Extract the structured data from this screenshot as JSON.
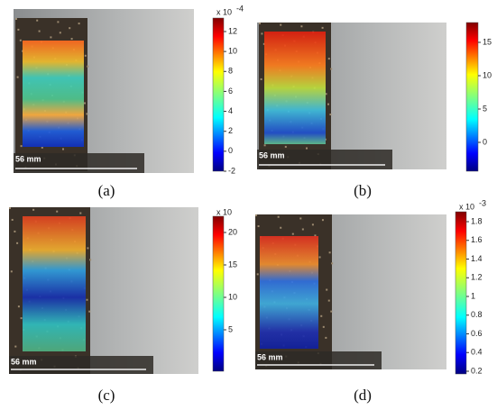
{
  "panels": [
    {
      "label": "(a)",
      "scale_text": "56 mm",
      "colorbar": {
        "multiplier": "x 10",
        "exponent": "-4",
        "ticks": [
          12,
          10,
          8,
          6,
          4,
          2,
          0,
          -2
        ]
      }
    },
    {
      "label": "(b)",
      "scale_text": "56 mm",
      "colorbar": {
        "ticks": [
          15,
          10,
          5,
          0
        ]
      }
    },
    {
      "label": "(c)",
      "scale_text": "56 mm",
      "colorbar": {
        "multiplier": "x 10",
        "ticks": [
          20,
          15,
          10,
          5
        ]
      }
    },
    {
      "label": "(d)",
      "scale_text": "56 mm",
      "colorbar": {
        "multiplier": "x 10",
        "exponent": "-3",
        "ticks": [
          1.8,
          1.6,
          1.4,
          1.2,
          1,
          0.8,
          0.6,
          0.4,
          0.2
        ]
      }
    }
  ]
}
